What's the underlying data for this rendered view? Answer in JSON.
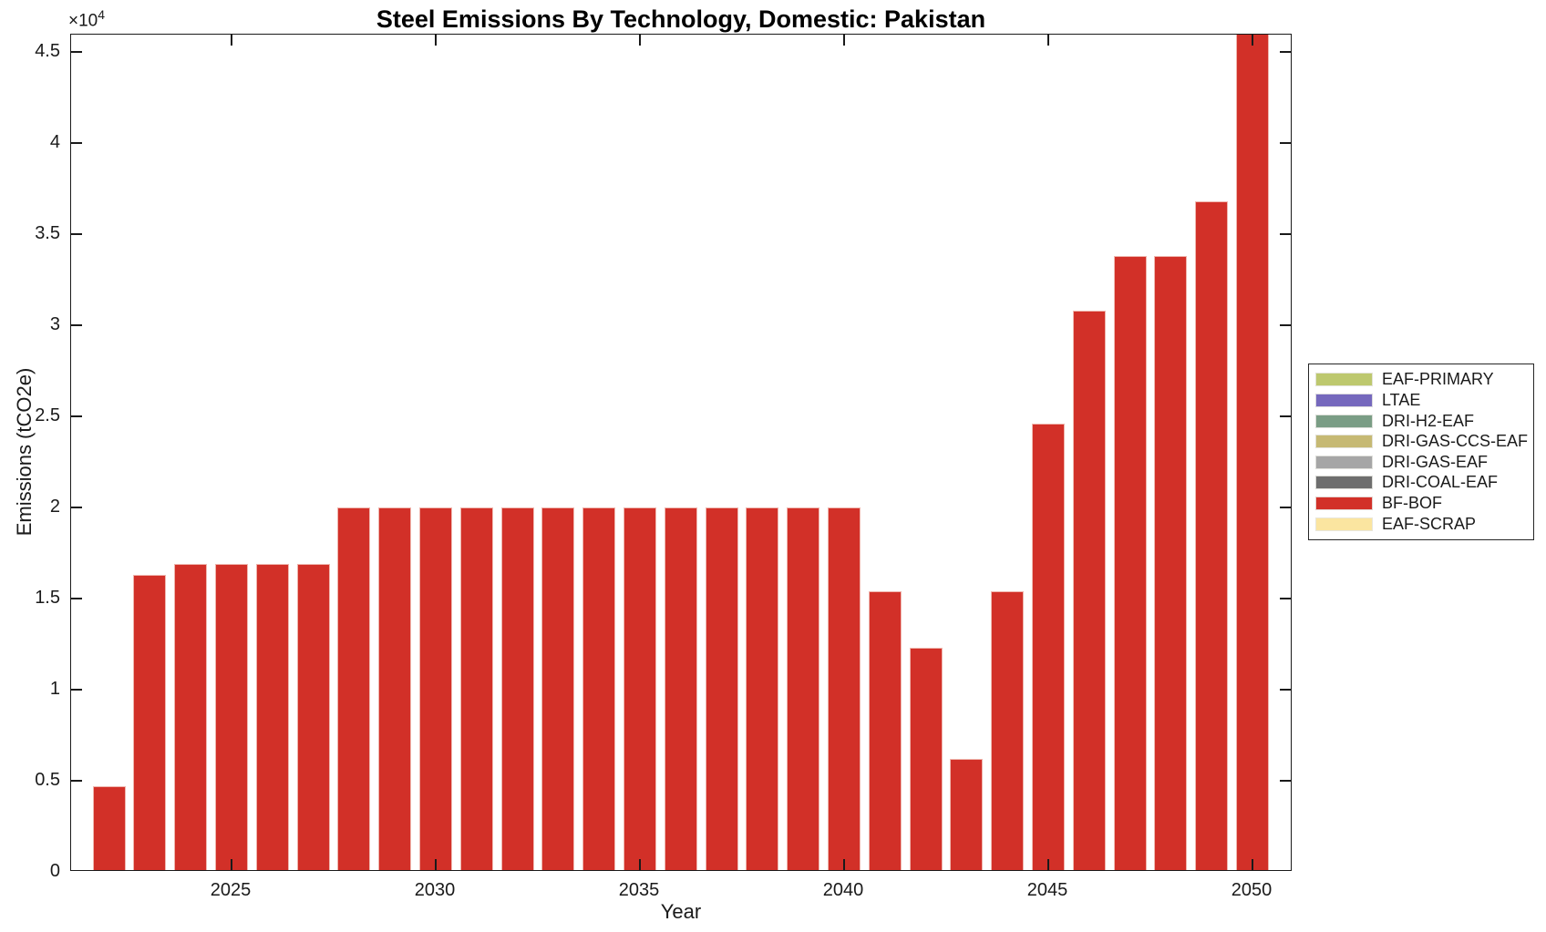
{
  "title": "Steel Emissions By Technology, Domestic: Pakistan",
  "y_axis": {
    "label": "Emissions (tCO2e)",
    "exponent_prefix": "×10",
    "exponent_power": "4"
  },
  "x_axis": {
    "label": "Year"
  },
  "chart_data": {
    "type": "bar",
    "title": "Steel Emissions By Technology, Domestic: Pakistan",
    "xlabel": "Year",
    "ylabel": "Emissions (tCO2e)",
    "y_scale_note": "y tick values are ×10^4 tCO2e",
    "x": [
      2022,
      2023,
      2024,
      2025,
      2026,
      2027,
      2028,
      2029,
      2030,
      2031,
      2032,
      2033,
      2034,
      2035,
      2036,
      2037,
      2038,
      2039,
      2040,
      2041,
      2042,
      2043,
      2044,
      2045,
      2046,
      2047,
      2048,
      2049,
      2050
    ],
    "series": [
      {
        "name": "BF-BOF",
        "color": "#d23028",
        "values": [
          4600,
          16200,
          16800,
          16800,
          16800,
          16800,
          19900,
          19900,
          19900,
          19900,
          19900,
          19900,
          19900,
          19900,
          19900,
          19900,
          19900,
          19900,
          19900,
          15300,
          12200,
          6100,
          15300,
          24500,
          30700,
          33700,
          33700,
          36700,
          46000
        ]
      }
    ],
    "legend": [
      {
        "label": "EAF-PRIMARY",
        "color": "#bdc86e"
      },
      {
        "label": "LTAE",
        "color": "#7568bd"
      },
      {
        "label": "DRI-H2-EAF",
        "color": "#7a9d85"
      },
      {
        "label": "DRI-GAS-CCS-EAF",
        "color": "#c6b973"
      },
      {
        "label": "DRI-GAS-EAF",
        "color": "#a6a6a6"
      },
      {
        "label": "DRI-COAL-EAF",
        "color": "#6e6e6e"
      },
      {
        "label": "BF-BOF",
        "color": "#d23028"
      },
      {
        "label": "EAF-SCRAP",
        "color": "#fbe5a0"
      }
    ],
    "xticks": [
      2025,
      2030,
      2035,
      2040,
      2045,
      2050
    ],
    "xtick_labels": [
      "2025",
      "2030",
      "2035",
      "2040",
      "2045",
      "2050"
    ],
    "yticks": [
      0,
      0.5,
      1,
      1.5,
      2,
      2.5,
      3,
      3.5,
      4,
      4.5
    ],
    "ytick_labels": [
      "0",
      "0.5",
      "1",
      "1.5",
      "2",
      "2.5",
      "3",
      "3.5",
      "4",
      "4.5"
    ],
    "ylim": [
      0,
      46000
    ],
    "xlim": [
      2021,
      2051
    ],
    "grid": false,
    "legend_position": "outside-right",
    "bar_edge_color": "#efb6ae"
  }
}
